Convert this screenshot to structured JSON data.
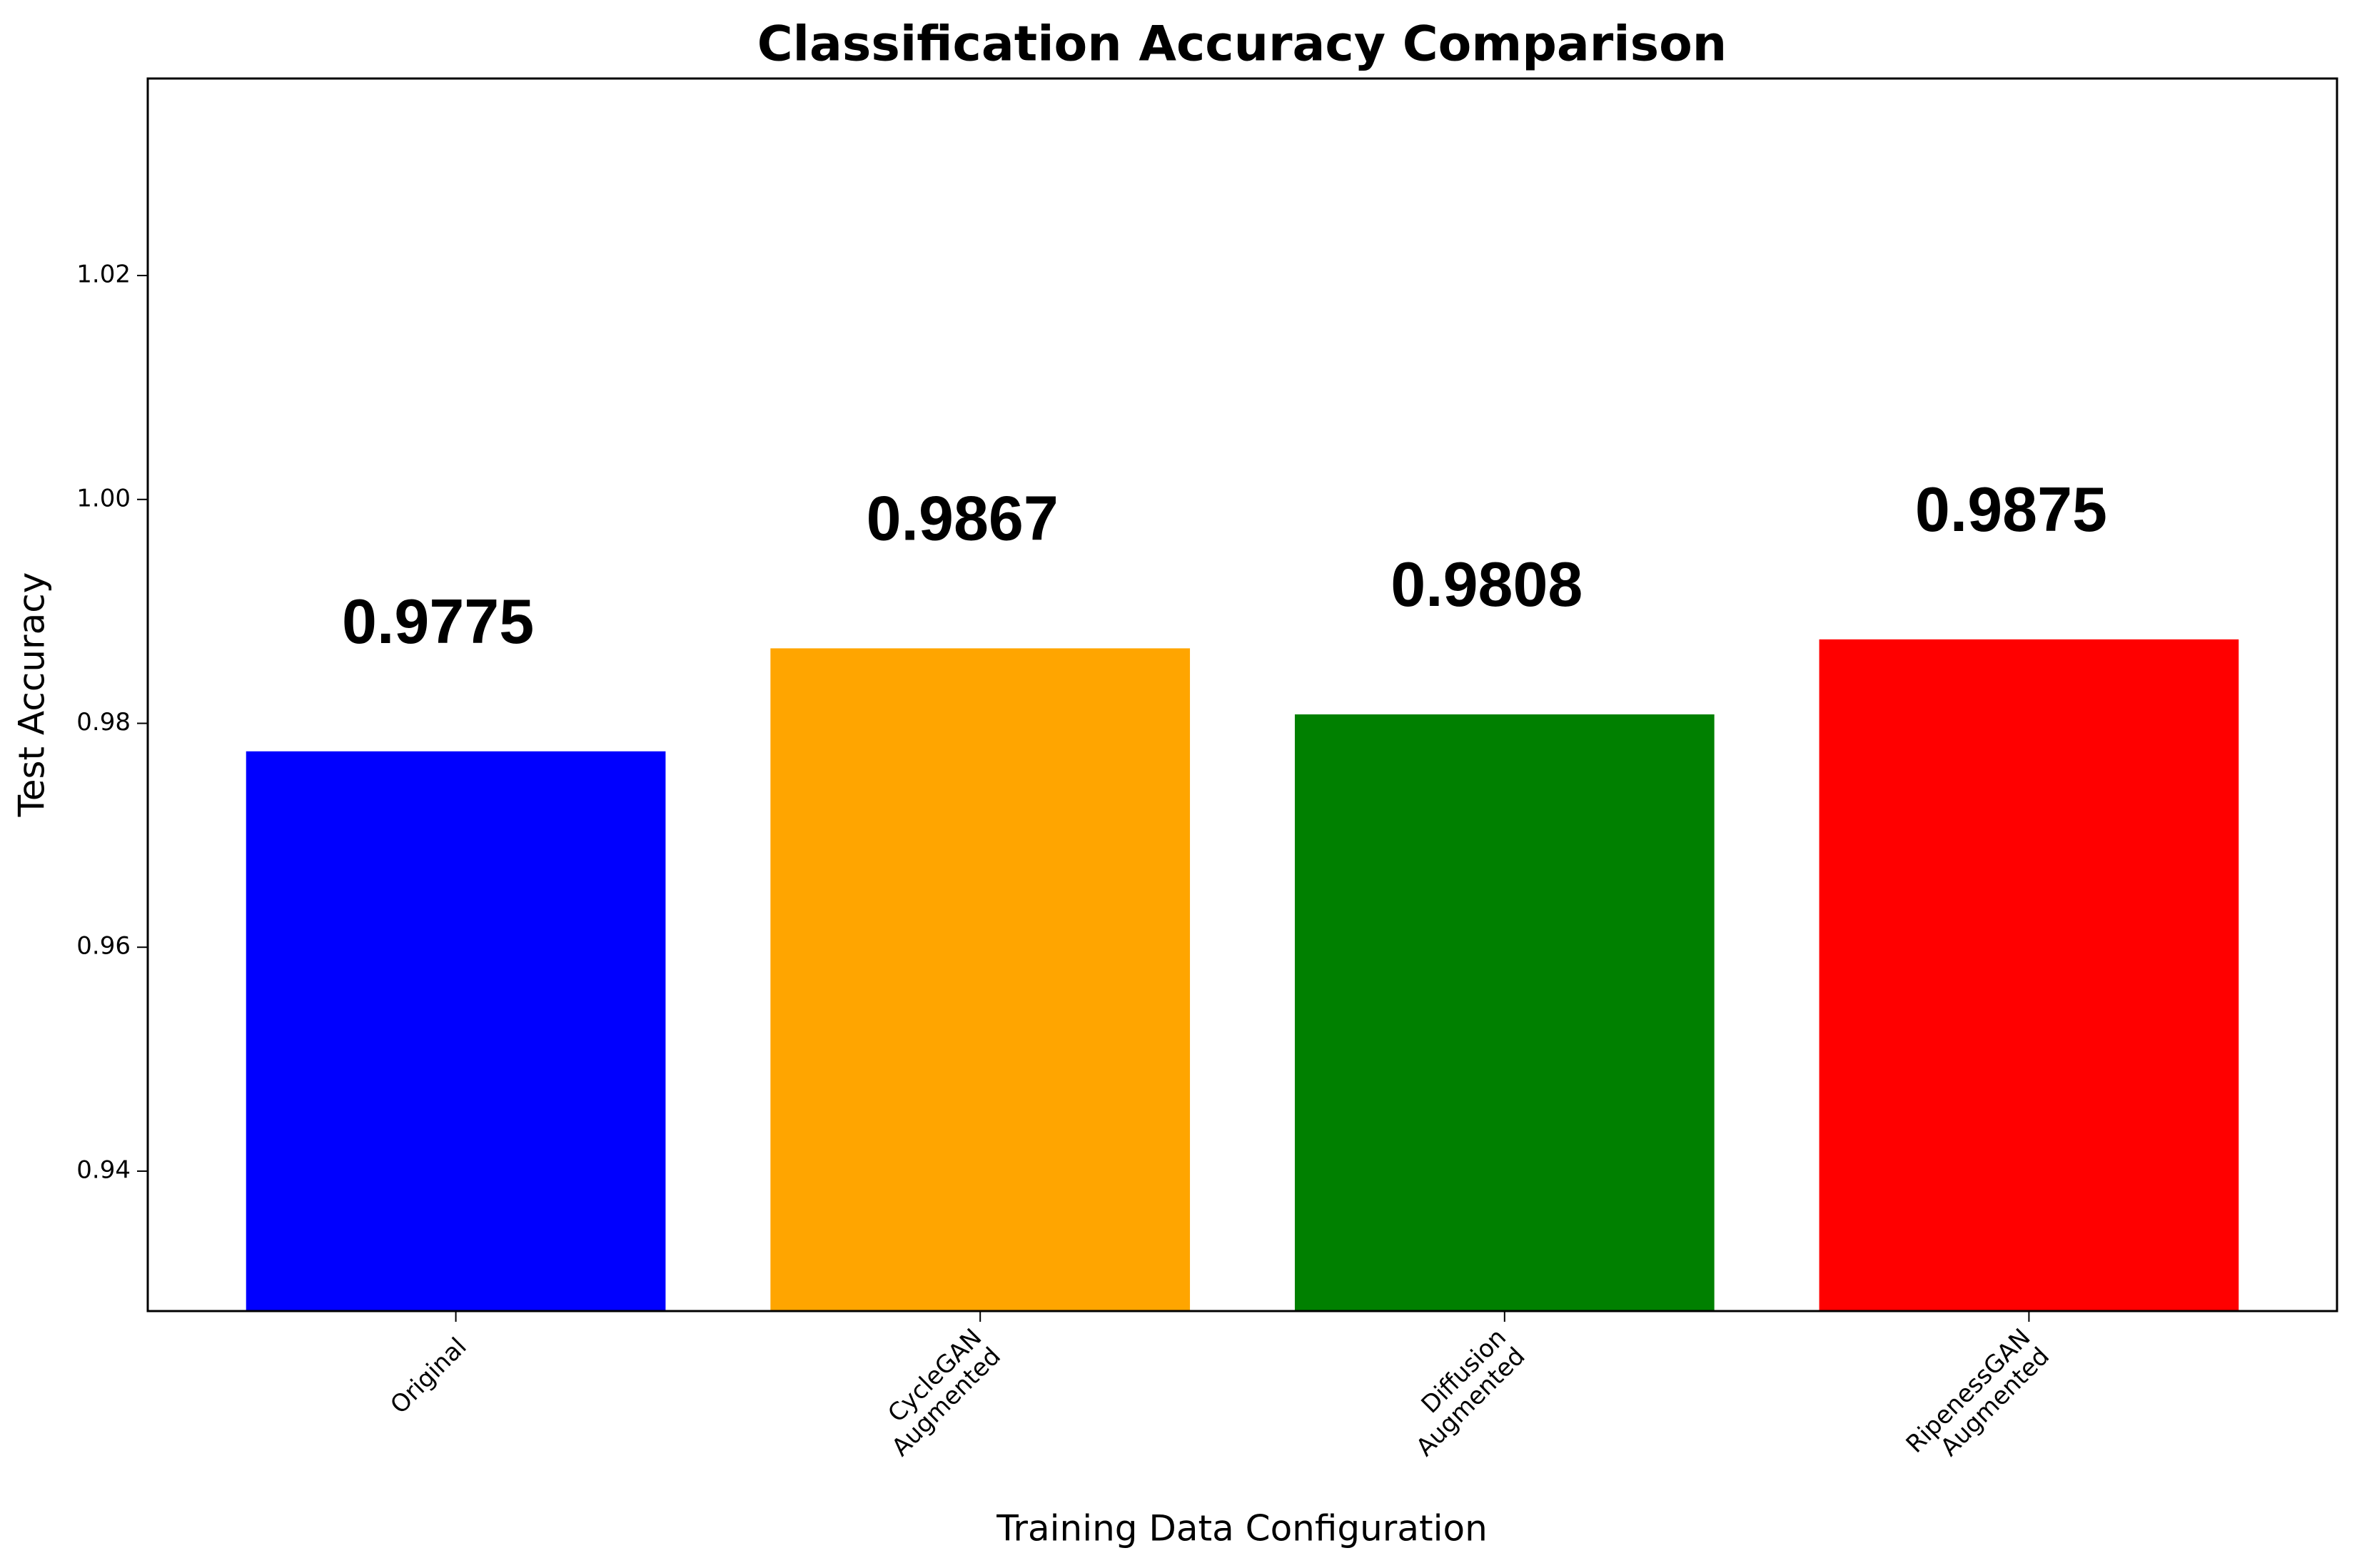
{
  "chart_data": {
    "type": "bar",
    "title": "Classification Accuracy Comparison",
    "x_label": "Training Data Configuration",
    "y_label": "Test Accuracy",
    "categories": [
      "Original",
      "CycleGAN\nAugmented",
      "Diffusion\nAugmented",
      "RipenessGAN\nAugmented"
    ],
    "values": [
      0.9775,
      0.9867,
      0.9808,
      0.9875
    ],
    "colors": [
      "#0000ff",
      "#ffa500",
      "#008000",
      "#ff0000"
    ],
    "ylim": [
      0.9275,
      1.0376
    ],
    "yticks": [
      0.94,
      0.96,
      0.98,
      {
        "value": 1.0,
        "label": "1.00"
      },
      1.02
    ]
  }
}
